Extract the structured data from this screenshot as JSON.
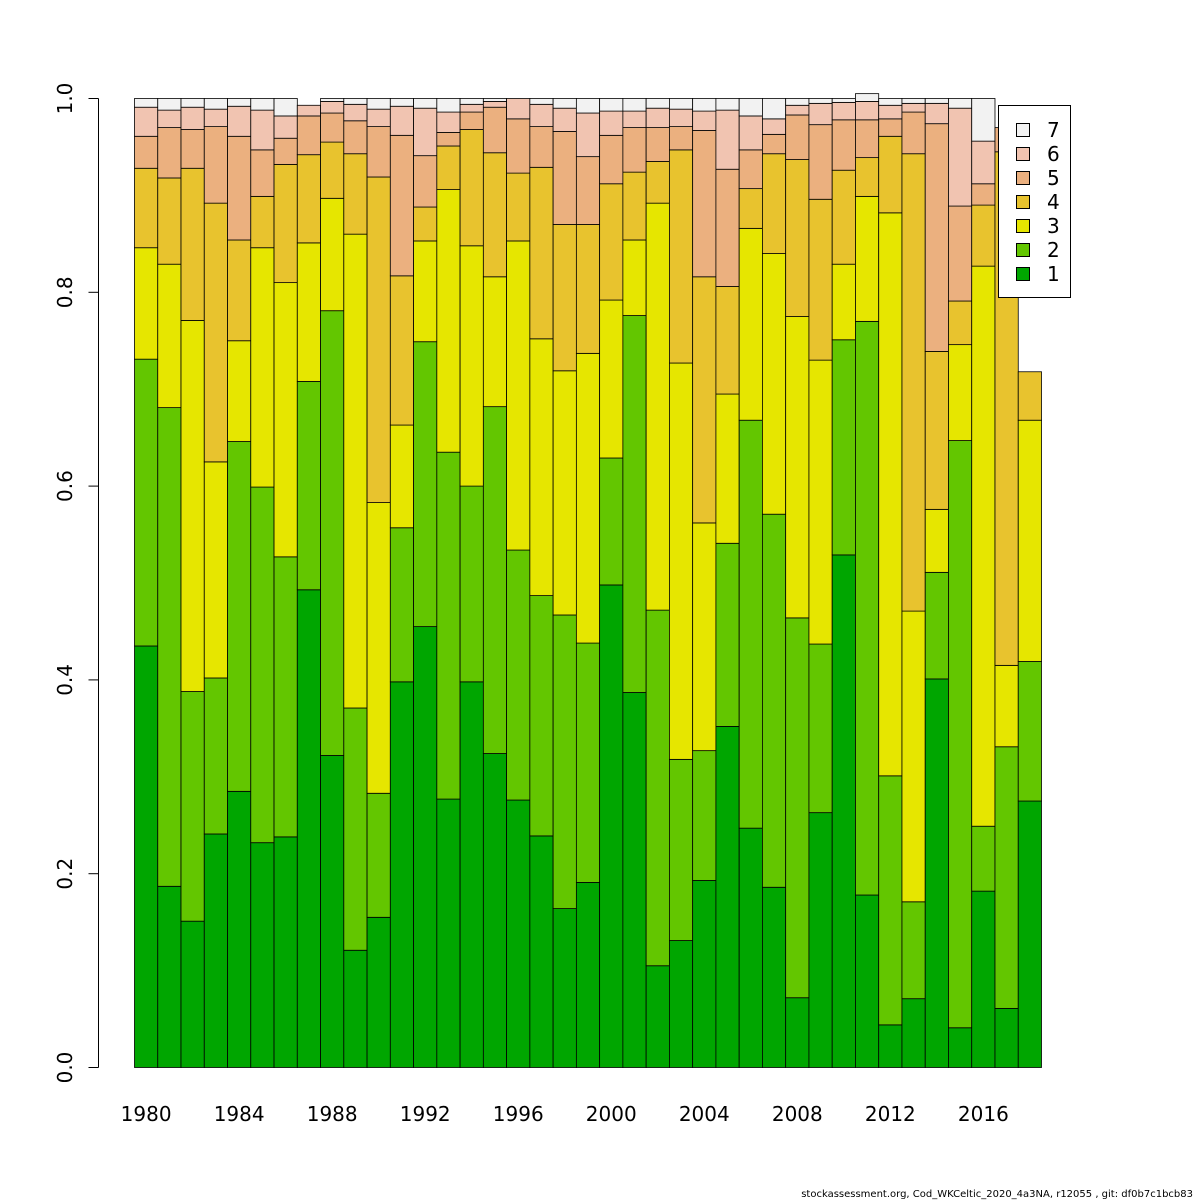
{
  "chart_data": {
    "type": "bar",
    "stacked": true,
    "categories": [
      1980,
      1981,
      1982,
      1983,
      1984,
      1985,
      1986,
      1987,
      1988,
      1989,
      1990,
      1991,
      1992,
      1993,
      1994,
      1995,
      1996,
      1997,
      1998,
      1999,
      2000,
      2001,
      2002,
      2003,
      2004,
      2005,
      2006,
      2007,
      2008,
      2009,
      2010,
      2011,
      2012,
      2013,
      2014,
      2015,
      2016,
      2017,
      2018
    ],
    "x_tick_labels": [
      "1980",
      "1984",
      "1988",
      "1992",
      "1996",
      "2000",
      "2004",
      "2008",
      "2012",
      "2016"
    ],
    "y_tick_labels": [
      "0.0",
      "0.2",
      "0.4",
      "0.6",
      "0.8",
      "1.0"
    ],
    "ylim": [
      0,
      1
    ],
    "legend_position": "top-right",
    "series": [
      {
        "name": "1",
        "color": "#00a600",
        "values": [
          0.435,
          0.187,
          0.151,
          0.241,
          0.285,
          0.232,
          0.238,
          0.493,
          0.322,
          0.121,
          0.155,
          0.398,
          0.455,
          0.277,
          0.398,
          0.324,
          0.276,
          0.239,
          0.164,
          0.191,
          0.498,
          0.387,
          0.105,
          0.131,
          0.193,
          0.352,
          0.247,
          0.186,
          0.072,
          0.263,
          0.529,
          0.178,
          0.044,
          0.071,
          0.401,
          0.041,
          0.182,
          0.061,
          0.275
        ]
      },
      {
        "name": "2",
        "color": "#63c600",
        "values": [
          0.296,
          0.494,
          0.237,
          0.161,
          0.361,
          0.367,
          0.289,
          0.215,
          0.459,
          0.25,
          0.128,
          0.159,
          0.294,
          0.358,
          0.202,
          0.358,
          0.258,
          0.248,
          0.303,
          0.247,
          0.131,
          0.389,
          0.367,
          0.187,
          0.134,
          0.189,
          0.421,
          0.385,
          0.392,
          0.174,
          0.222,
          0.592,
          0.257,
          0.1,
          0.11,
          0.606,
          0.067,
          0.27,
          0.144
        ]
      },
      {
        "name": "3",
        "color": "#e6e600",
        "values": [
          0.115,
          0.148,
          0.383,
          0.223,
          0.104,
          0.247,
          0.283,
          0.143,
          0.116,
          0.489,
          0.3,
          0.106,
          0.104,
          0.271,
          0.248,
          0.134,
          0.319,
          0.265,
          0.252,
          0.299,
          0.163,
          0.078,
          0.42,
          0.409,
          0.235,
          0.154,
          0.198,
          0.269,
          0.311,
          0.293,
          0.078,
          0.129,
          0.581,
          0.3,
          0.065,
          0.099,
          0.578,
          0.084,
          0.249
        ]
      },
      {
        "name": "4",
        "color": "#e8c32e",
        "values": [
          0.082,
          0.089,
          0.157,
          0.267,
          0.104,
          0.053,
          0.122,
          0.091,
          0.058,
          0.083,
          0.336,
          0.154,
          0.035,
          0.045,
          0.12,
          0.128,
          0.07,
          0.177,
          0.151,
          0.133,
          0.12,
          0.07,
          0.043,
          0.22,
          0.254,
          0.111,
          0.041,
          0.103,
          0.162,
          0.166,
          0.097,
          0.04,
          0.079,
          0.472,
          0.163,
          0.045,
          0.063,
          0.53,
          0.05
        ]
      },
      {
        "name": "5",
        "color": "#ebb07f",
        "values": [
          0.033,
          0.052,
          0.04,
          0.079,
          0.107,
          0.048,
          0.027,
          0.04,
          0.03,
          0.034,
          0.052,
          0.145,
          0.053,
          0.014,
          0.018,
          0.047,
          0.056,
          0.042,
          0.096,
          0.07,
          0.05,
          0.046,
          0.035,
          0.024,
          0.151,
          0.121,
          0.04,
          0.02,
          0.046,
          0.077,
          0.052,
          0.039,
          0.018,
          0.043,
          0.235,
          0.098,
          0.022,
          0.025,
          0.0
        ]
      },
      {
        "name": "6",
        "color": "#f1c4b1",
        "values": [
          0.03,
          0.018,
          0.023,
          0.018,
          0.031,
          0.041,
          0.023,
          0.011,
          0.012,
          0.017,
          0.018,
          0.03,
          0.049,
          0.021,
          0.008,
          0.006,
          0.021,
          0.023,
          0.024,
          0.045,
          0.025,
          0.017,
          0.02,
          0.018,
          0.02,
          0.061,
          0.035,
          0.016,
          0.01,
          0.022,
          0.018,
          0.019,
          0.014,
          0.009,
          0.021,
          0.101,
          0.044,
          0.0,
          0.0
        ]
      },
      {
        "name": "7",
        "color": "#f2f2f2",
        "values": [
          0.009,
          0.012,
          0.009,
          0.011,
          0.008,
          0.012,
          0.018,
          0.0,
          0.003,
          0.006,
          0.011,
          0.008,
          0.01,
          0.014,
          0.006,
          0.003,
          0.0,
          0.006,
          0.01,
          0.015,
          0.013,
          0.013,
          0.01,
          0.011,
          0.013,
          0.012,
          0.018,
          0.021,
          0.007,
          0.005,
          0.004,
          0.008,
          0.007,
          0.005,
          0.005,
          0.01,
          0.044,
          0.0,
          0.0
        ]
      }
    ]
  },
  "footer": {
    "caption": "stockassessment.org, Cod_WKCeltic_2020_4a3NA, r12055 , git: df0b7c1bcb83"
  }
}
